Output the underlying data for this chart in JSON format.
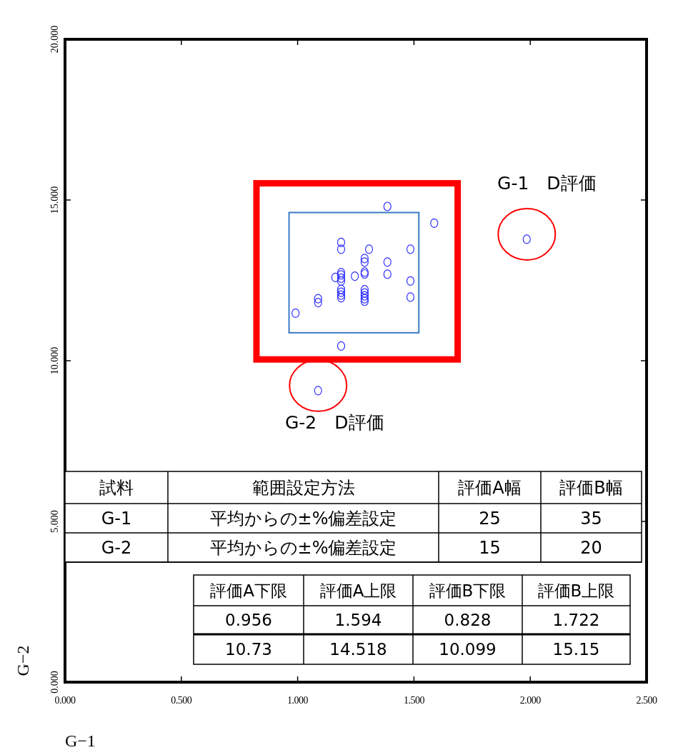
{
  "chart_data": {
    "type": "scatter",
    "xlabel": "G−1",
    "ylabel": "G−2",
    "color": "#3333ff",
    "marker": "circle",
    "grid": false,
    "x": [
      1.386,
      1.587,
      1.187,
      1.187,
      1.307,
      1.485,
      1.288,
      1.288,
      1.386,
      1.386,
      1.288,
      1.288,
      1.162,
      1.187,
      1.187,
      1.187,
      1.187,
      1.246,
      1.485,
      1.187,
      1.187,
      1.187,
      1.187,
      1.288,
      1.288,
      1.288,
      1.288,
      1.288,
      1.485,
      1.088,
      1.088,
      0.991,
      1.187,
      1.088,
      1.985
    ],
    "values": [
      14.8,
      14.28,
      13.68,
      13.47,
      13.47,
      13.47,
      13.18,
      13.07,
      13.07,
      12.69,
      12.76,
      12.7,
      12.59,
      12.74,
      12.67,
      12.57,
      12.48,
      12.63,
      12.48,
      12.22,
      12.13,
      12.04,
      11.96,
      12.21,
      12.11,
      12.02,
      11.93,
      11.85,
      11.98,
      11.93,
      11.81,
      11.48,
      10.46,
      9.07,
      13.78
    ],
    "xlim": [
      0,
      2.5
    ],
    "ylim": [
      0,
      20
    ],
    "xticks": [
      {
        "value": 0,
        "label": "0.000"
      },
      {
        "value": 0.5,
        "label": "0.500"
      },
      {
        "value": 1,
        "label": "1.000"
      },
      {
        "value": 1.5,
        "label": "1.500"
      },
      {
        "value": 2,
        "label": "2.000"
      },
      {
        "value": 2.5,
        "label": "2.500"
      }
    ],
    "yticks": [
      {
        "value": 0,
        "label": "0.000"
      },
      {
        "value": 5,
        "label": "5.000"
      },
      {
        "value": 10,
        "label": "10.000"
      },
      {
        "value": 15,
        "label": "15.000"
      },
      {
        "value": 20,
        "label": "20.000"
      }
    ],
    "annotations": [
      {
        "text": "G-1　D評価",
        "x": 1.985,
        "y": 13.78
      },
      {
        "text": "G-2　D評価",
        "x": 1.088,
        "y": 9.07
      },
      "試料",
      "範囲設定方法",
      "評価A幅",
      "評価B幅",
      "G-1",
      "平均からの±%偏差設定",
      "25",
      "35",
      "G-2",
      "平均からの±%偏差設定",
      "15",
      "20",
      "評価A下限",
      "評価A上限",
      "評価B下限",
      "評価B上限",
      "0.956",
      "1.594",
      "0.828",
      "1.722",
      "10.73",
      "14.518",
      "10.099",
      "15.15"
    ]
  }
}
